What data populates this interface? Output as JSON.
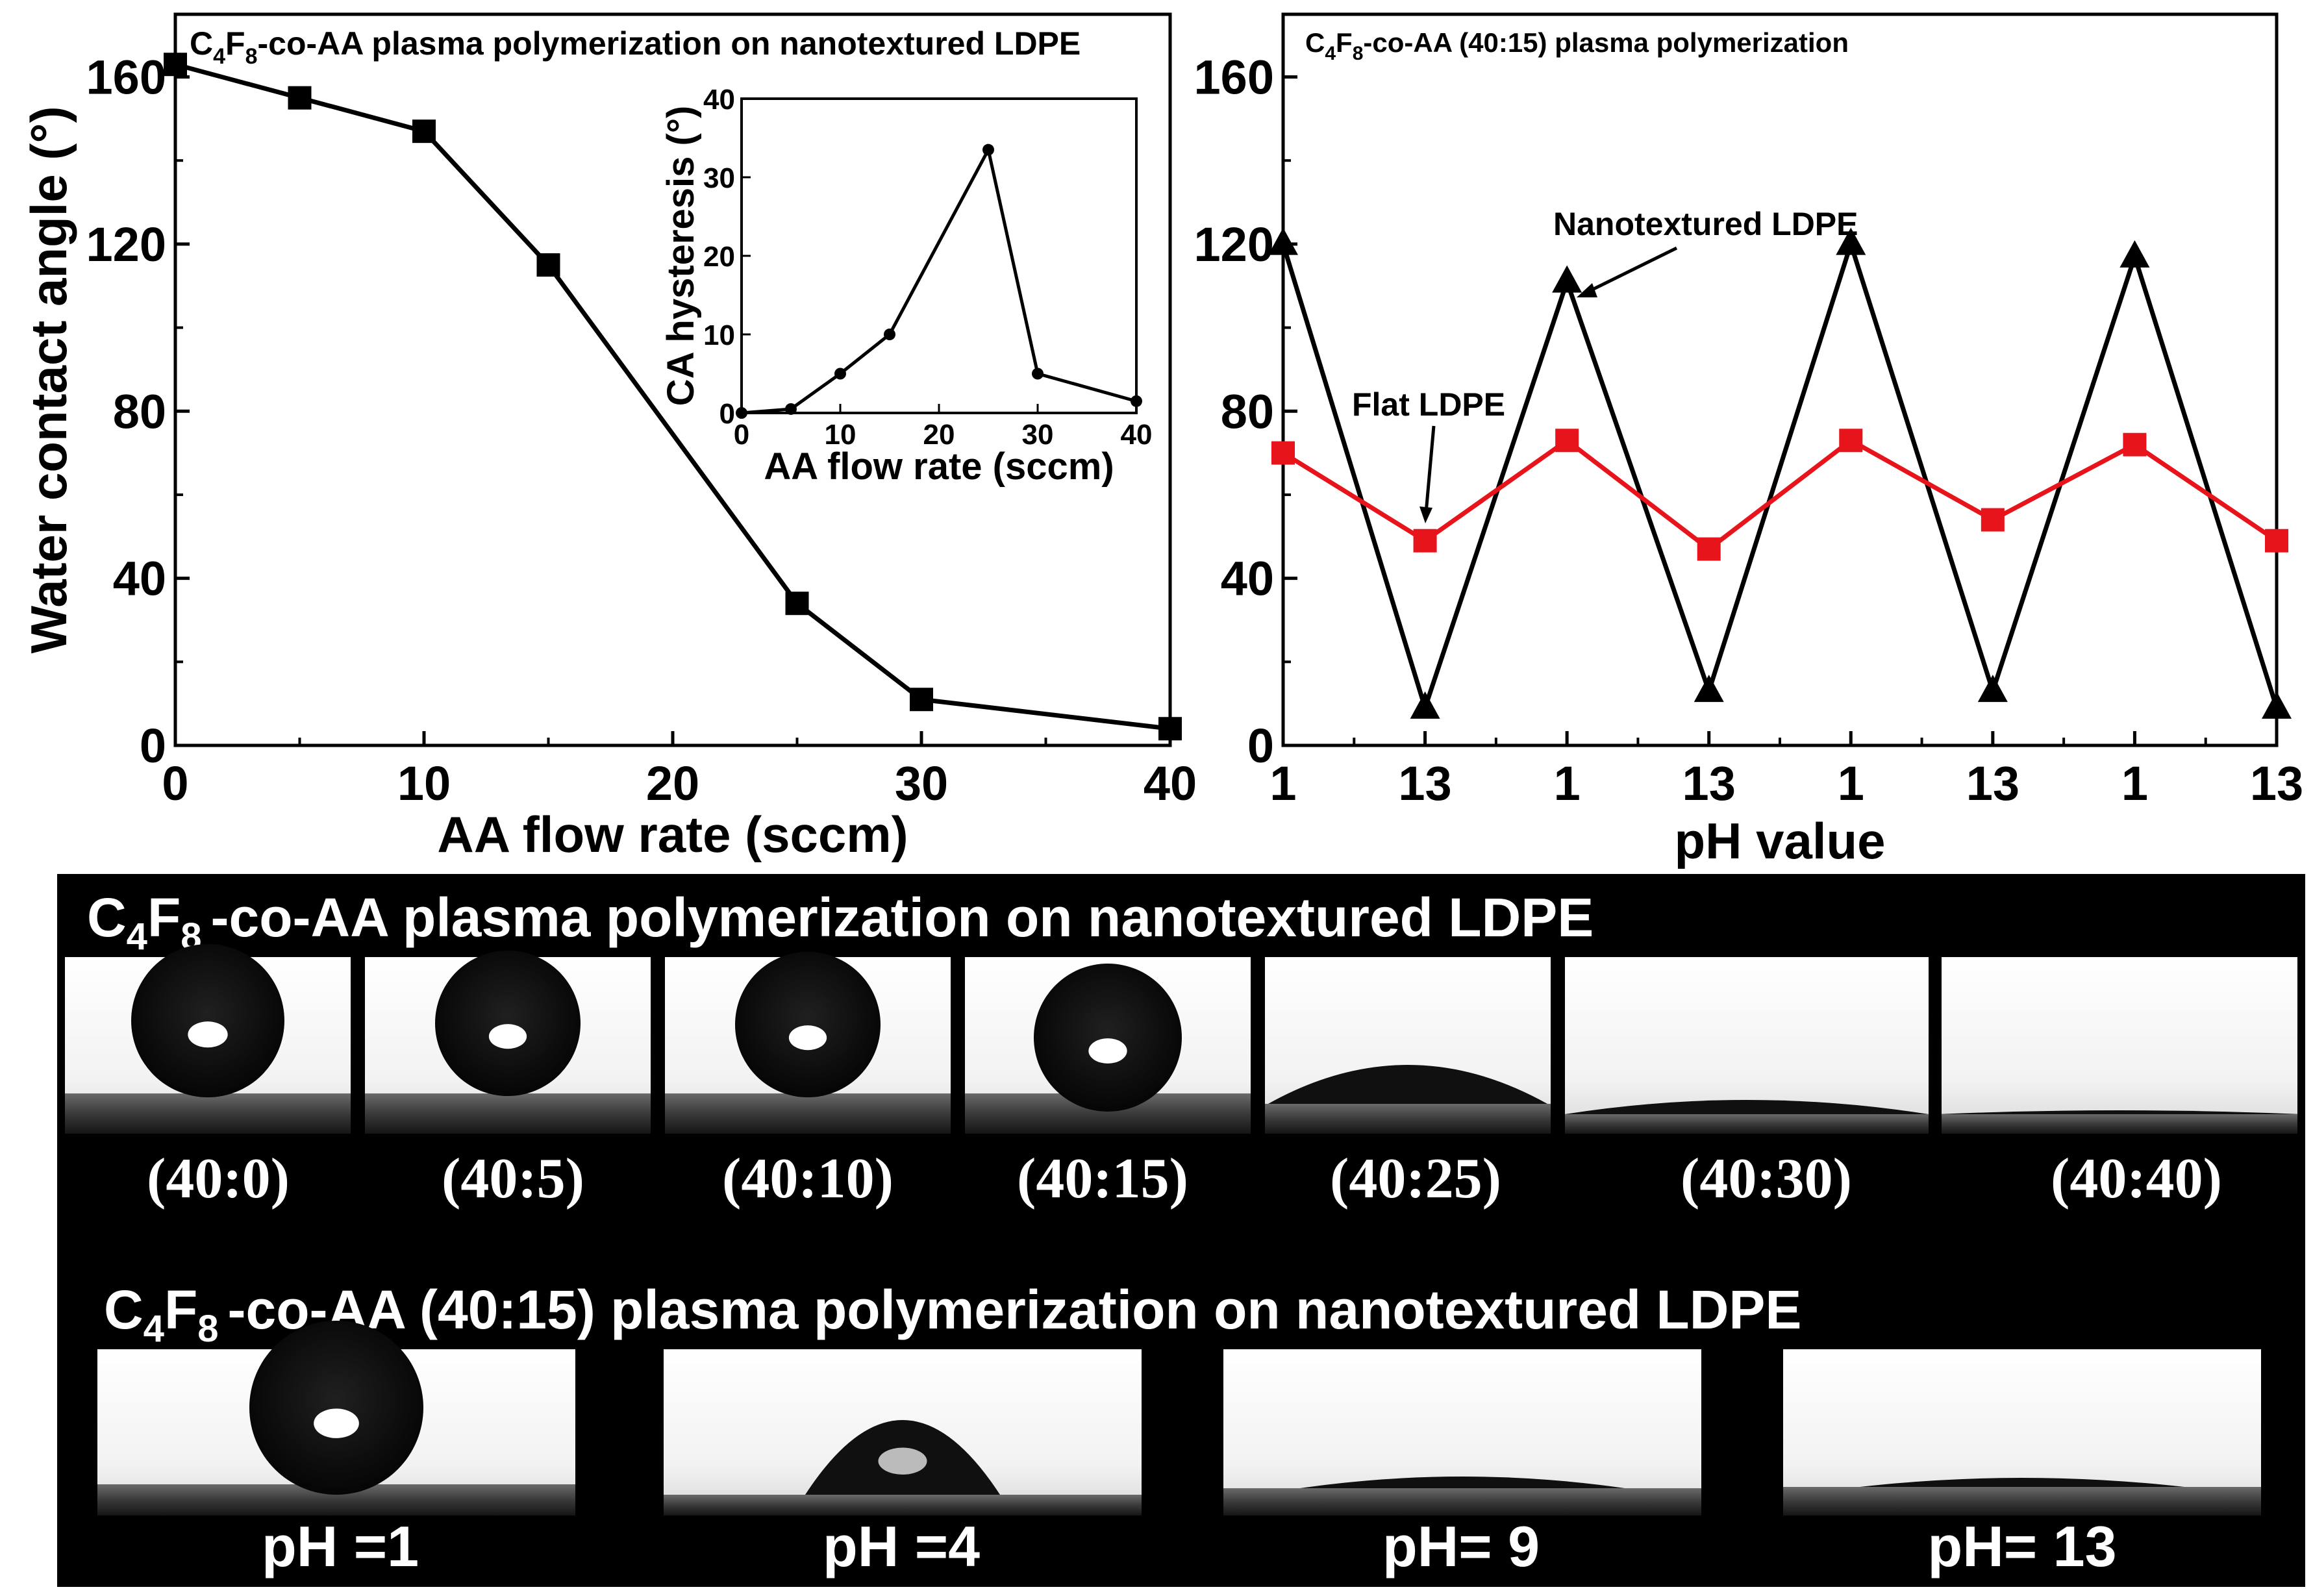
{
  "chart_data": [
    {
      "id": "main-left",
      "type": "line",
      "title": "-co-AA  plasma polymerization  on nanotextured LDPE",
      "formula": {
        "c": "C",
        "c_sub": "4",
        "f": "F",
        "f_sub": "8"
      },
      "xlabel": "AA flow rate (sccm)",
      "ylabel": "Water contact angle (°)",
      "xlim": [
        0,
        40
      ],
      "ylim": [
        0,
        175
      ],
      "xticks": [
        "0",
        "10",
        "20",
        "30",
        "40"
      ],
      "yticks": [
        "0",
        "40",
        "80",
        "120",
        "160"
      ],
      "series": [
        {
          "name": "Water contact angle",
          "color": "#000000",
          "marker": "square",
          "x": [
            0,
            5,
            10,
            15,
            25,
            30,
            40
          ],
          "y": [
            163,
            155,
            147,
            115,
            34,
            11,
            4
          ]
        }
      ]
    },
    {
      "id": "inset",
      "type": "line",
      "title": "",
      "xlabel": "AA flow rate (sccm)",
      "ylabel": "CA hysteresis (°)",
      "xlim": [
        0,
        40
      ],
      "ylim": [
        0,
        40
      ],
      "xticks": [
        "0",
        "10",
        "20",
        "30",
        "40"
      ],
      "yticks": [
        "0",
        "10",
        "20",
        "30",
        "40"
      ],
      "series": [
        {
          "name": "CA hysteresis",
          "color": "#000000",
          "marker": "circle",
          "x": [
            0,
            5,
            10,
            15,
            25,
            30,
            40
          ],
          "y": [
            0,
            0.5,
            5,
            10,
            33.5,
            5,
            1.5
          ]
        }
      ]
    },
    {
      "id": "main-right",
      "type": "line",
      "title": "-co-AA (40:15) plasma polymerization",
      "formula": {
        "c": "C",
        "c_sub": "4",
        "f": "F",
        "f_sub": "8"
      },
      "xlabel": "pH value",
      "ylabel": "",
      "ylim": [
        0,
        175
      ],
      "categories": [
        "1",
        "13",
        "1",
        "13",
        "1",
        "13",
        "1",
        "13"
      ],
      "yticks": [
        "0",
        "40",
        "80",
        "120",
        "160"
      ],
      "annotations": [
        "Nanotextured LDPE",
        "Flat LDPE"
      ],
      "series": [
        {
          "name": "Nanotextured LDPE",
          "color": "#000000",
          "marker": "triangle",
          "values": [
            120,
            9,
            111,
            13,
            120,
            13,
            117,
            9
          ]
        },
        {
          "name": "Flat LDPE",
          "color": "#e8141b",
          "marker": "square",
          "values": [
            70,
            49,
            73,
            47,
            73,
            54,
            72,
            49
          ]
        }
      ]
    }
  ],
  "panel_a": {
    "title": "-co-AA plasma polymerization on nanotextured LDPE",
    "formula": {
      "c": "C",
      "c_sub": "4",
      "f": "F",
      "f_sub": "8"
    },
    "labels": [
      "(40:0)",
      "(40:5)",
      "(40:10)",
      "(40:15)",
      "(40:25)",
      "(40:30)",
      "(40:40)"
    ]
  },
  "panel_b": {
    "title": "-co-AA (40:15) plasma polymerization on nanotextured LDPE",
    "formula": {
      "c": "C",
      "c_sub": "4",
      "f": "F",
      "f_sub": "8"
    },
    "labels": [
      "pH =1",
      "pH =4",
      "pH= 9",
      "pH= 13"
    ]
  }
}
